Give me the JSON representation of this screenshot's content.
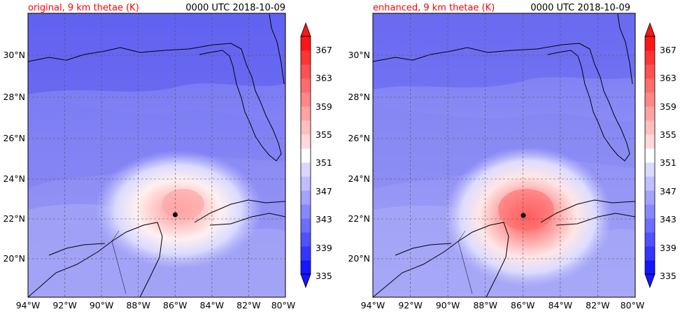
{
  "panels": [
    {
      "title_left": "original, 9 km thetae (K)",
      "title_right": "0000 UTC 2018-10-09",
      "storm_intensity": "weaker"
    },
    {
      "title_left": "enhanced, 9 km thetae (K)",
      "title_right": "0000 UTC 2018-10-09",
      "storm_intensity": "stronger"
    }
  ],
  "lon_labels": [
    "94°W",
    "92°W",
    "90°W",
    "88°W",
    "86°W",
    "84°W",
    "82°W",
    "80°W"
  ],
  "lat_labels": [
    "20°N",
    "22°N",
    "24°N",
    "26°N",
    "28°N",
    "30°N"
  ],
  "colorbar": {
    "labels": [
      "367",
      "363",
      "359",
      "355",
      "351",
      "347",
      "343",
      "339",
      "335"
    ],
    "colors": [
      "#1515ff",
      "#3535ff",
      "#5151ff",
      "#6d6dff",
      "#8787ff",
      "#a3a3ff",
      "#bfbfff",
      "#d9d9ff",
      "#ffffff",
      "#ffd9d9",
      "#ffbfbf",
      "#ffa3a3",
      "#ff8787",
      "#ff6d6d",
      "#ff5151",
      "#ff3535",
      "#ff1515"
    ]
  }
}
